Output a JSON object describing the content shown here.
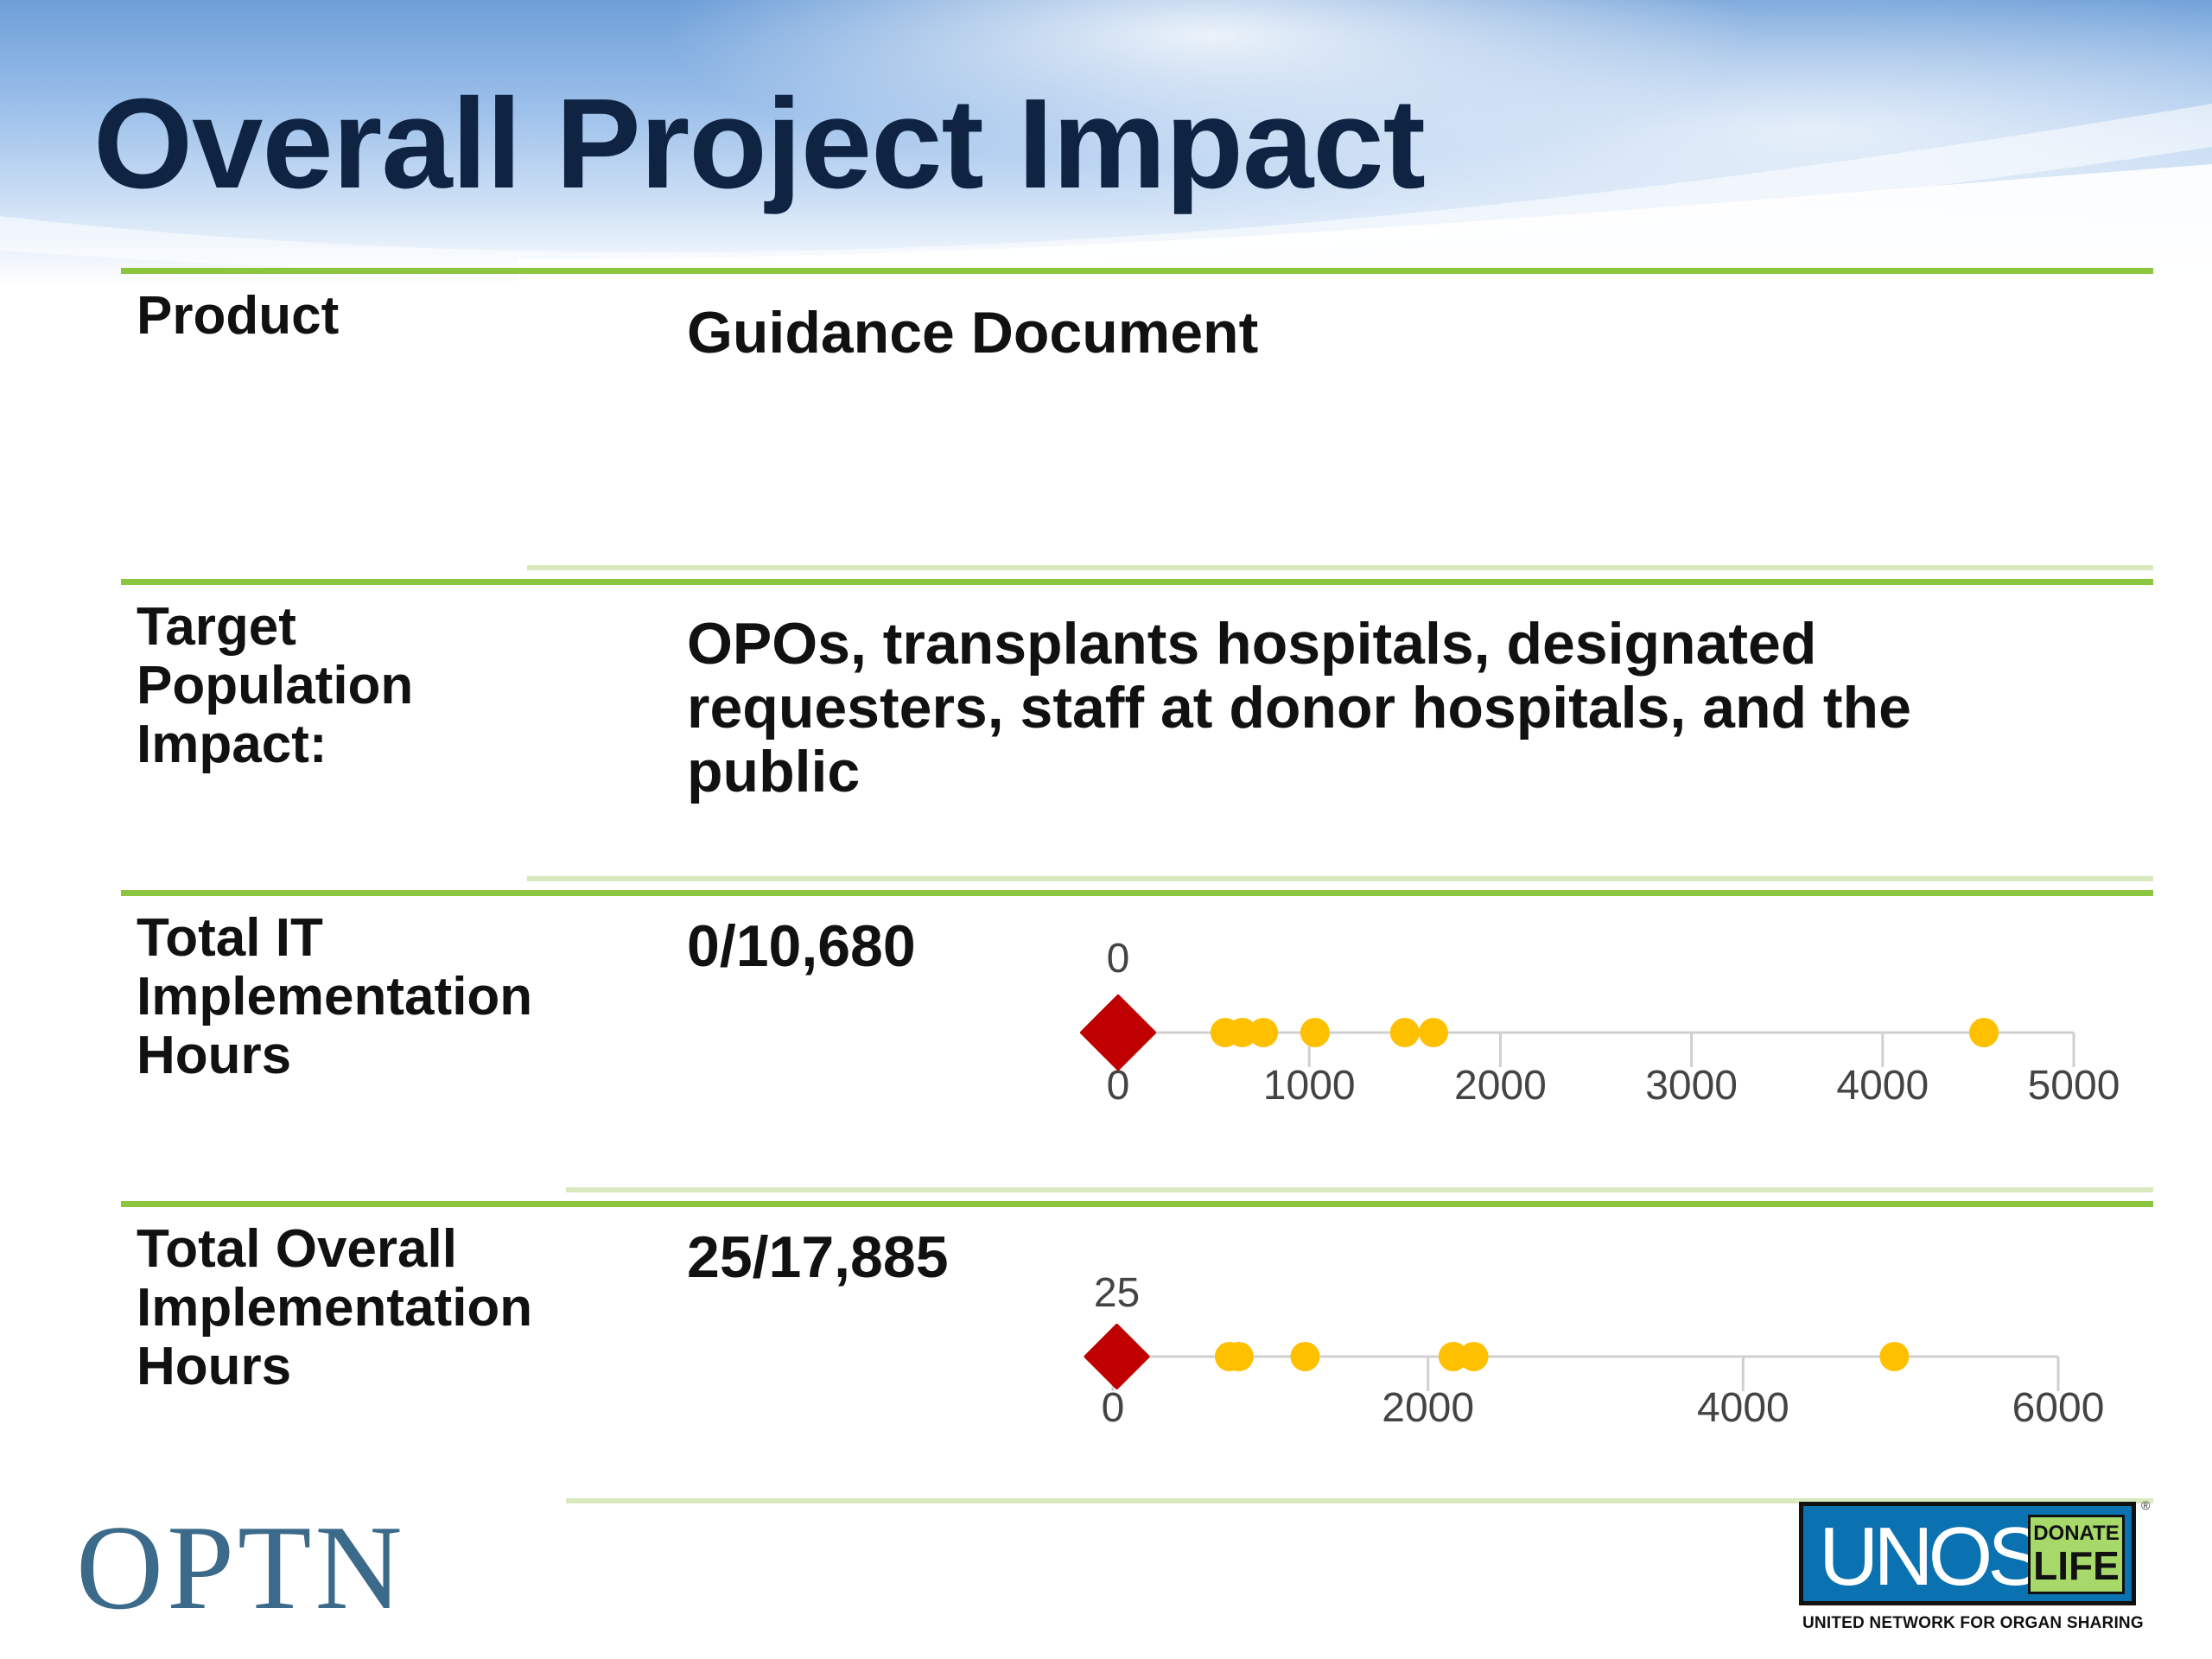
{
  "slide": {
    "title": "Overall Project Impact"
  },
  "rows": [
    {
      "label": "Product",
      "value": "Guidance Document"
    },
    {
      "label": "Target Population Impact:",
      "value": "OPOs, transplants hospitals, designated requesters, staff at donor hospitals, and the public"
    },
    {
      "label": "Total IT Implementation Hours",
      "value": "0/10,680"
    },
    {
      "label": "Total Overall Implementation Hours",
      "value": "25/17,885"
    }
  ],
  "colors": {
    "rule_green": "#8cc63f",
    "highlight_marker": "#c00000",
    "other_points": "#ffc000",
    "title_color": "#0f2443"
  },
  "chart_data": [
    {
      "type": "scatter",
      "title": "",
      "xlabel": "",
      "ylabel": "",
      "x_ticks": [
        0,
        1000,
        2000,
        3000,
        4000,
        5000
      ],
      "xlim": [
        0,
        5000
      ],
      "highlight": {
        "x": 0,
        "label": "0",
        "marker": "diamond",
        "color": "#c00000"
      },
      "series": [
        {
          "values": [
            560,
            650,
            760,
            1030,
            1500,
            1650,
            4530
          ],
          "marker": "circle",
          "color": "#ffc000"
        }
      ],
      "grid": false
    },
    {
      "type": "scatter",
      "title": "",
      "xlabel": "",
      "ylabel": "",
      "x_ticks": [
        0,
        2000,
        4000,
        6000
      ],
      "xlim": [
        0,
        6000
      ],
      "highlight": {
        "x": 25,
        "label": "25",
        "marker": "diamond",
        "color": "#c00000"
      },
      "series": [
        {
          "values": [
            740,
            800,
            1220,
            2160,
            2290,
            4960
          ],
          "marker": "circle",
          "color": "#ffc000"
        }
      ],
      "grid": false
    }
  ],
  "footer": {
    "optn_logo": "OPTN",
    "unos_logo": "UNOS",
    "donate_top": "DONATE",
    "donate_bottom": "LIFE",
    "registered": "®",
    "unos_tagline": "UNITED NETWORK FOR ORGAN SHARING"
  }
}
